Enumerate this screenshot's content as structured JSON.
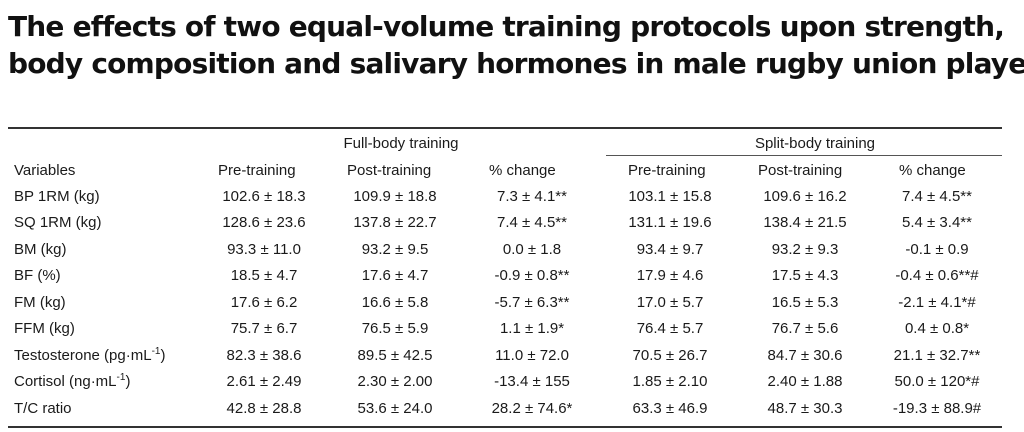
{
  "title": {
    "line1": "The effects of two equal-volume training protocols upon strength,",
    "line2": "body composition and salivary hormones in male rugby union players"
  },
  "groups": {
    "full": "Full-body training",
    "split": "Split-body training"
  },
  "headers": {
    "variables": "Variables",
    "full_pre": "Pre-training",
    "full_post": "Post-training",
    "full_change": "% change",
    "split_pre": "Pre-training",
    "split_post": "Post-training",
    "split_change": "% change"
  },
  "rows": [
    {
      "variable": "BP 1RM (kg)",
      "unit_sup": "",
      "unit_tail": "",
      "full_pre": "102.6 ± 18.3",
      "full_post": "109.9 ± 18.8",
      "full_change": "7.3 ± 4.1**",
      "split_pre": "103.1 ± 15.8",
      "split_post": "109.6 ± 16.2",
      "split_change": "7.4 ± 4.5**"
    },
    {
      "variable": "SQ 1RM (kg)",
      "unit_sup": "",
      "unit_tail": "",
      "full_pre": "128.6 ± 23.6",
      "full_post": "137.8 ± 22.7",
      "full_change": "7.4 ± 4.5**",
      "split_pre": "131.1 ± 19.6",
      "split_post": "138.4 ± 21.5",
      "split_change": "5.4 ± 3.4**"
    },
    {
      "variable": "BM (kg)",
      "unit_sup": "",
      "unit_tail": "",
      "full_pre": "93.3 ± 11.0",
      "full_post": "93.2 ± 9.5",
      "full_change": "0.0 ± 1.8",
      "split_pre": "93.4 ± 9.7",
      "split_post": "93.2 ± 9.3",
      "split_change": "-0.1 ± 0.9"
    },
    {
      "variable": "BF (%)",
      "unit_sup": "",
      "unit_tail": "",
      "full_pre": "18.5 ± 4.7",
      "full_post": "17.6 ± 4.7",
      "full_change": "-0.9 ± 0.8**",
      "split_pre": "17.9 ± 4.6",
      "split_post": "17.5 ± 4.3",
      "split_change": "-0.4 ± 0.6**#"
    },
    {
      "variable": "FM (kg)",
      "unit_sup": "",
      "unit_tail": "",
      "full_pre": "17.6 ± 6.2",
      "full_post": "16.6 ± 5.8",
      "full_change": "-5.7 ± 6.3**",
      "split_pre": "17.0 ± 5.7",
      "split_post": "16.5 ± 5.3",
      "split_change": "-2.1 ± 4.1*#"
    },
    {
      "variable": "FFM (kg)",
      "unit_sup": "",
      "unit_tail": "",
      "full_pre": "75.7 ± 6.7",
      "full_post": "76.5 ± 5.9",
      "full_change": "1.1 ± 1.9*",
      "split_pre": "76.4 ± 5.7",
      "split_post": "76.7 ± 5.6",
      "split_change": "0.4 ± 0.8*"
    },
    {
      "variable": "Testosterone (pg·mL",
      "unit_sup": "-1",
      "unit_tail": ")",
      "full_pre": "82.3 ± 38.6",
      "full_post": "89.5 ± 42.5",
      "full_change": "11.0 ± 72.0",
      "split_pre": "70.5 ± 26.7",
      "split_post": "84.7 ± 30.6",
      "split_change": "21.1 ± 32.7**"
    },
    {
      "variable": "Cortisol (ng·mL",
      "unit_sup": "-1",
      "unit_tail": ")",
      "full_pre": "2.61 ± 2.49",
      "full_post": "2.30 ± 2.00",
      "full_change": "-13.4 ± 155",
      "split_pre": "1.85 ± 2.10",
      "split_post": "2.40 ± 1.88",
      "split_change": "50.0 ± 120*#"
    },
    {
      "variable": "T/C ratio",
      "unit_sup": "",
      "unit_tail": "",
      "full_pre": "42.8 ± 28.8",
      "full_post": "53.6 ± 24.0",
      "full_change": "28.2 ± 74.6*",
      "split_pre": "63.3 ± 46.9",
      "split_post": "48.7 ± 30.3",
      "split_change": "-19.3 ± 88.9#"
    }
  ]
}
